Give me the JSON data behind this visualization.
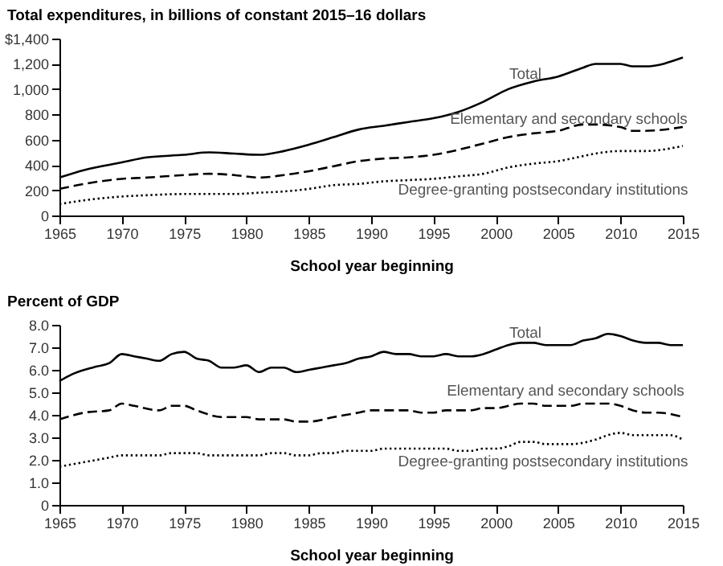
{
  "chart_data": [
    {
      "type": "line",
      "ylabel": "Total expenditures, in billions of constant 2015–16 dollars",
      "xlabel": "School year beginning",
      "xlim": [
        1965,
        2015
      ],
      "xticks": [
        1965,
        1970,
        1975,
        1980,
        1985,
        1990,
        1995,
        2000,
        2005,
        2010,
        2015
      ],
      "ylim": [
        0,
        1400
      ],
      "yticks": [
        0,
        200,
        400,
        600,
        800,
        {
          "value": 1000,
          "label": "1,000"
        },
        {
          "value": 1200,
          "label": "1,200"
        },
        {
          "value": 1400,
          "label": "$1,400"
        }
      ],
      "series": [
        {
          "name": "Total",
          "color": "#000000",
          "line_style": "solid",
          "x": [
            1965,
            1967,
            1970,
            1972,
            1975,
            1977,
            1979,
            1981,
            1983,
            1985,
            1987,
            1989,
            1991,
            1993,
            1995,
            1997,
            1999,
            2001,
            2003,
            2005,
            2007,
            2008,
            2010,
            2011,
            2012,
            2015
          ],
          "values": [
            300,
            360,
            420,
            460,
            480,
            500,
            490,
            480,
            510,
            560,
            620,
            680,
            710,
            740,
            770,
            820,
            900,
            1000,
            1060,
            1100,
            1170,
            1200,
            1200,
            1180,
            1180,
            1250
          ]
        },
        {
          "name": "Elementary and secondary schools",
          "color": "#000000",
          "line_style": "dashed",
          "x": [
            1965,
            1967,
            1970,
            1972,
            1975,
            1977,
            1979,
            1981,
            1983,
            1985,
            1987,
            1989,
            1991,
            1993,
            1995,
            1997,
            1999,
            2001,
            2003,
            2005,
            2007,
            2008,
            2010,
            2011,
            2012,
            2015
          ],
          "values": [
            210,
            250,
            290,
            300,
            320,
            330,
            320,
            300,
            320,
            350,
            390,
            430,
            450,
            460,
            480,
            520,
            570,
            620,
            650,
            670,
            720,
            720,
            700,
            670,
            670,
            700
          ]
        },
        {
          "name": "Degree-granting postsecondary institutions",
          "color": "#000000",
          "line_style": "dotted",
          "x": [
            1965,
            1967,
            1970,
            1972,
            1975,
            1977,
            1979,
            1981,
            1983,
            1985,
            1987,
            1989,
            1991,
            1993,
            1995,
            1997,
            1999,
            2001,
            2003,
            2005,
            2007,
            2008,
            2010,
            2011,
            2012,
            2015
          ],
          "values": [
            90,
            120,
            150,
            160,
            170,
            170,
            170,
            180,
            190,
            210,
            240,
            250,
            270,
            280,
            290,
            310,
            330,
            380,
            410,
            430,
            470,
            490,
            510,
            510,
            510,
            550
          ]
        }
      ]
    },
    {
      "type": "line",
      "ylabel": "Percent of GDP",
      "xlabel": "School year beginning",
      "xlim": [
        1965,
        2015
      ],
      "xticks": [
        1965,
        1970,
        1975,
        1980,
        1985,
        1990,
        1995,
        2000,
        2005,
        2010,
        2015
      ],
      "ylim": [
        0,
        8
      ],
      "yticks": [
        0,
        {
          "value": 1,
          "label": "1.0"
        },
        {
          "value": 2,
          "label": "2.0"
        },
        {
          "value": 3,
          "label": "3.0"
        },
        {
          "value": 4,
          "label": "4.0"
        },
        {
          "value": 5,
          "label": "5.0"
        },
        {
          "value": 6,
          "label": "6.0"
        },
        {
          "value": 7,
          "label": "7.0"
        },
        {
          "value": 8,
          "label": "8.0"
        }
      ],
      "series": [
        {
          "name": "Total",
          "color": "#000000",
          "line_style": "solid",
          "x": [
            1965,
            1966,
            1967,
            1968,
            1969,
            1970,
            1971,
            1972,
            1973,
            1974,
            1975,
            1976,
            1977,
            1978,
            1979,
            1980,
            1981,
            1982,
            1983,
            1984,
            1985,
            1986,
            1987,
            1988,
            1989,
            1990,
            1991,
            1992,
            1993,
            1994,
            1995,
            1996,
            1997,
            1998,
            1999,
            2000,
            2001,
            2002,
            2003,
            2004,
            2005,
            2006,
            2007,
            2008,
            2009,
            2010,
            2011,
            2012,
            2013,
            2014,
            2015
          ],
          "values": [
            5.5,
            5.8,
            6.0,
            6.15,
            6.3,
            6.7,
            6.6,
            6.5,
            6.4,
            6.7,
            6.8,
            6.5,
            6.4,
            6.1,
            6.1,
            6.2,
            5.9,
            6.1,
            6.1,
            5.9,
            6.0,
            6.1,
            6.2,
            6.3,
            6.5,
            6.6,
            6.8,
            6.7,
            6.7,
            6.6,
            6.6,
            6.7,
            6.6,
            6.6,
            6.7,
            6.9,
            7.1,
            7.2,
            7.2,
            7.1,
            7.1,
            7.1,
            7.3,
            7.4,
            7.6,
            7.5,
            7.3,
            7.2,
            7.2,
            7.1,
            7.1
          ]
        },
        {
          "name": "Elementary and secondary schools",
          "color": "#000000",
          "line_style": "dashed",
          "x": [
            1965,
            1967,
            1969,
            1970,
            1971,
            1973,
            1974,
            1975,
            1976,
            1978,
            1980,
            1981,
            1983,
            1984,
            1985,
            1987,
            1989,
            1990,
            1993,
            1994,
            1995,
            1996,
            1998,
            1999,
            2000,
            2002,
            2003,
            2004,
            2006,
            2007,
            2009,
            2010,
            2011,
            2012,
            2013,
            2015
          ],
          "values": [
            3.8,
            4.1,
            4.2,
            4.5,
            4.4,
            4.2,
            4.4,
            4.4,
            4.2,
            3.9,
            3.9,
            3.8,
            3.8,
            3.7,
            3.7,
            3.9,
            4.1,
            4.2,
            4.2,
            4.1,
            4.1,
            4.2,
            4.2,
            4.3,
            4.3,
            4.5,
            4.5,
            4.4,
            4.4,
            4.5,
            4.5,
            4.4,
            4.2,
            4.1,
            4.1,
            3.9
          ]
        },
        {
          "name": "Degree-granting postsecondary institutions",
          "color": "#000000",
          "line_style": "dotted",
          "x": [
            1965,
            1967,
            1969,
            1970,
            1973,
            1974,
            1976,
            1977,
            1980,
            1981,
            1982,
            1983,
            1984,
            1985,
            1986,
            1987,
            1988,
            1990,
            1991,
            1995,
            1996,
            1997,
            1998,
            1999,
            2000,
            2001,
            2002,
            2003,
            2004,
            2005,
            2006,
            2008,
            2009,
            2010,
            2011,
            2014,
            2015
          ],
          "values": [
            1.7,
            1.9,
            2.1,
            2.2,
            2.2,
            2.3,
            2.3,
            2.2,
            2.2,
            2.2,
            2.3,
            2.3,
            2.2,
            2.2,
            2.3,
            2.3,
            2.4,
            2.4,
            2.5,
            2.5,
            2.5,
            2.4,
            2.4,
            2.5,
            2.5,
            2.6,
            2.8,
            2.8,
            2.7,
            2.7,
            2.7,
            2.9,
            3.1,
            3.2,
            3.1,
            3.1,
            2.9
          ]
        }
      ]
    }
  ]
}
